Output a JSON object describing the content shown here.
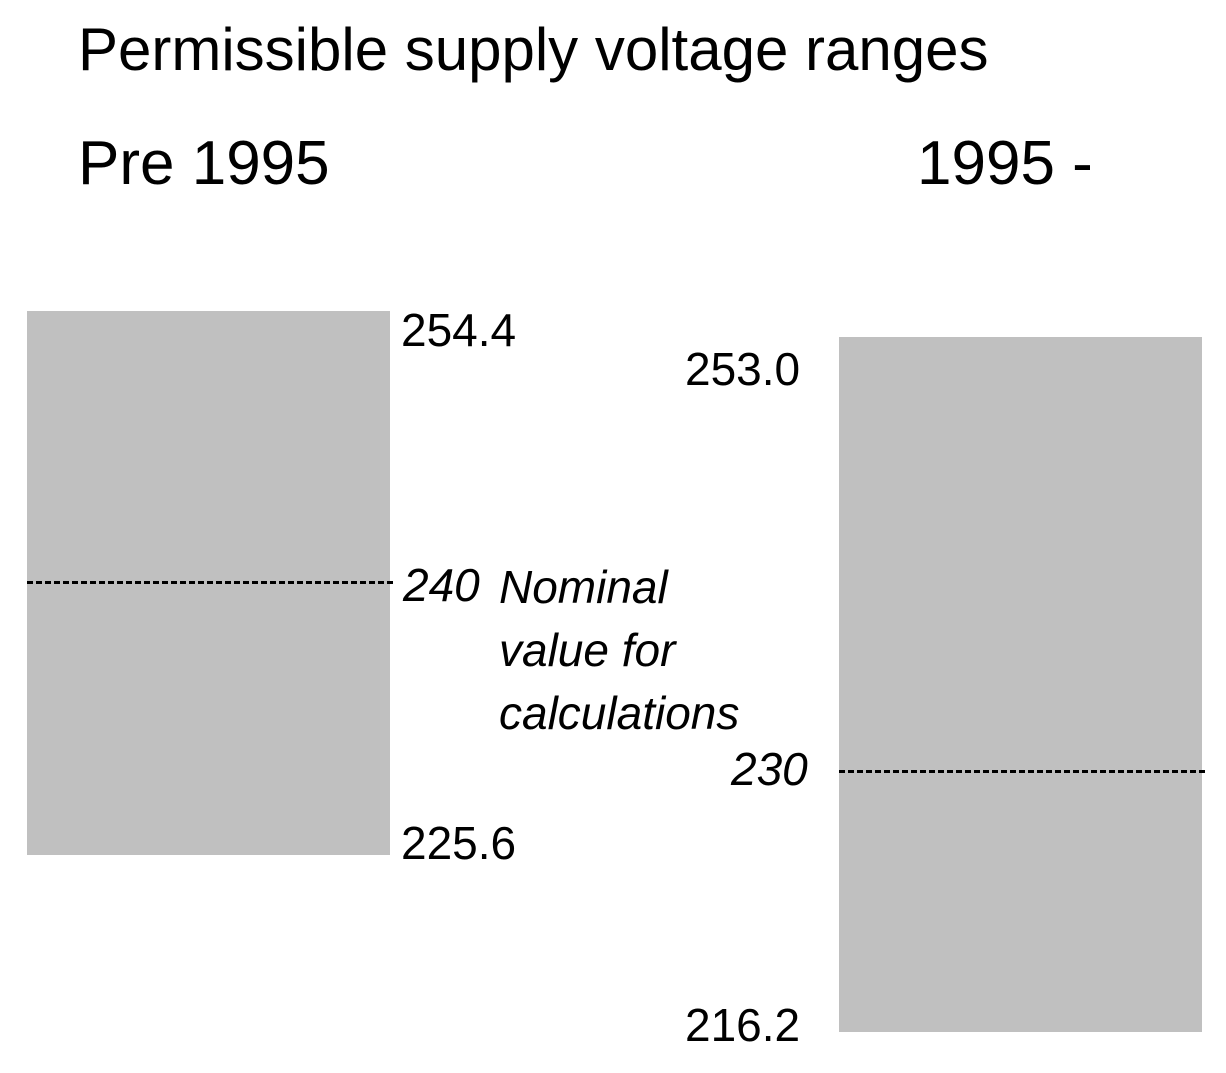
{
  "title": "Permissible supply voltage ranges",
  "periods": [
    {
      "heading": "Pre 1995",
      "max": "254.4",
      "nominal": "240",
      "min": "225.6"
    },
    {
      "heading": "1995 -",
      "max": "253.0",
      "nominal": "230",
      "min": "216.2"
    }
  ],
  "nominal_note": {
    "lines": [
      "Nominal",
      "value for",
      "calculations"
    ]
  },
  "colors": {
    "band": "#c0c0c0",
    "nominal_line": "#000000"
  }
}
